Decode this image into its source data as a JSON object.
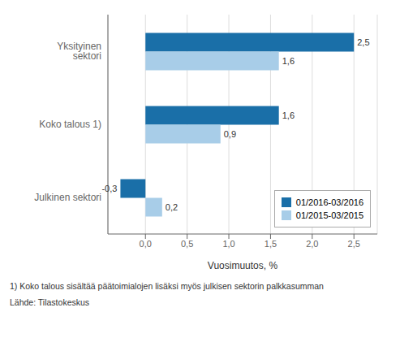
{
  "chart_data": {
    "type": "bar",
    "orientation": "horizontal",
    "categories": [
      "Julkinen sektori",
      "Koko talous 1)",
      "Yksityinen sektori"
    ],
    "series": [
      {
        "name": "01/2016-03/2016",
        "color": "#1a6fa8",
        "values": [
          -0.3,
          1.6,
          2.5
        ],
        "value_labels": [
          "-0,3",
          "1,6",
          "2,5"
        ]
      },
      {
        "name": "01/2015-03/2015",
        "color": "#a8cde8",
        "values": [
          0.2,
          0.9,
          1.6
        ],
        "value_labels": [
          "0,2",
          "0,9",
          "1,6"
        ]
      }
    ],
    "xlabel": "Vuosimuutos, %",
    "xlim": [
      -0.45,
      2.78
    ],
    "xticks": [
      {
        "value": 0,
        "label": "0,0"
      },
      {
        "value": 0.5,
        "label": "0,5"
      },
      {
        "value": 1.0,
        "label": "1,0"
      },
      {
        "value": 1.5,
        "label": "1,5"
      },
      {
        "value": 2.0,
        "label": "2,0"
      },
      {
        "value": 2.5,
        "label": "2,5"
      }
    ],
    "grid": true,
    "legend": "lower right",
    "data_labels": true,
    "annotations": [
      "1) Koko talous sisältää päätoimialojen lisäksi myös julkisen sektorin palkkasumman",
      "Lähde: Tilastokeskus"
    ]
  }
}
